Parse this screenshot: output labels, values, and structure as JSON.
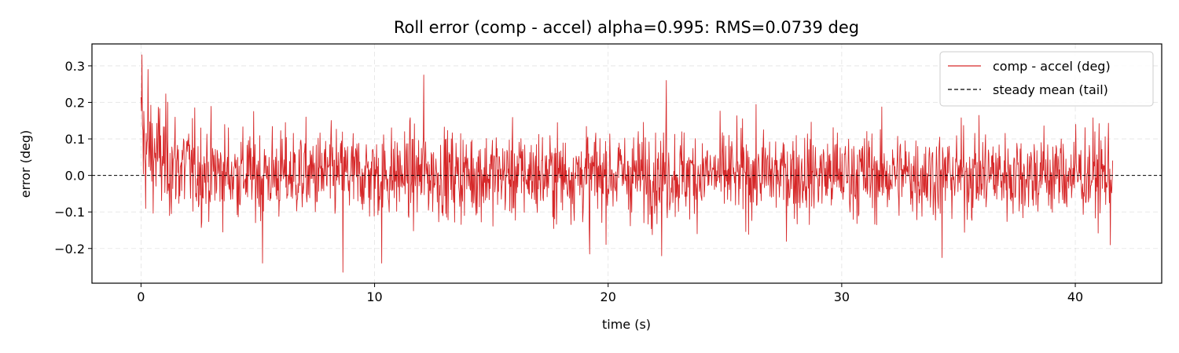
{
  "chart_data": {
    "type": "line",
    "title": "Roll error (comp - accel) alpha=0.995: RMS=0.0739 deg",
    "xlabel": "time (s)",
    "ylabel": "error (deg)",
    "xlim": [
      -2.1,
      43.7
    ],
    "ylim": [
      -0.295,
      0.36
    ],
    "x_ticks": [
      0,
      10,
      20,
      30,
      40
    ],
    "x_tick_labels": [
      "0",
      "10",
      "20",
      "30",
      "40"
    ],
    "y_ticks": [
      0.3,
      0.2,
      0.1,
      0.0,
      -0.1,
      -0.2
    ],
    "y_tick_labels": [
      "0.3",
      "0.2",
      "0.1",
      "0.0",
      "−0.1",
      "−0.2"
    ],
    "grid": true,
    "legend_position": "top-right",
    "series": [
      {
        "name": "comp - accel (deg)",
        "color": "#d62728",
        "style": "solid",
        "x_start": 0,
        "x_end": 41.6,
        "sample_count": 2080,
        "rms": 0.0739,
        "mean": 0.003,
        "min": -0.265,
        "max": 0.33,
        "peaks": [
          {
            "x": 0.05,
            "y": 0.33
          },
          {
            "x": 0.3,
            "y": 0.29
          },
          {
            "x": 5.2,
            "y": -0.24
          },
          {
            "x": 8.65,
            "y": -0.265
          },
          {
            "x": 10.3,
            "y": -0.24
          },
          {
            "x": 12.1,
            "y": 0.275
          },
          {
            "x": 19.2,
            "y": -0.215
          },
          {
            "x": 22.5,
            "y": 0.26
          },
          {
            "x": 22.3,
            "y": -0.22
          },
          {
            "x": 34.3,
            "y": -0.225
          },
          {
            "x": 41.5,
            "y": -0.19
          }
        ]
      },
      {
        "name": "steady mean (tail)",
        "color": "#000000",
        "style": "dashed",
        "y": 0.0
      }
    ]
  }
}
